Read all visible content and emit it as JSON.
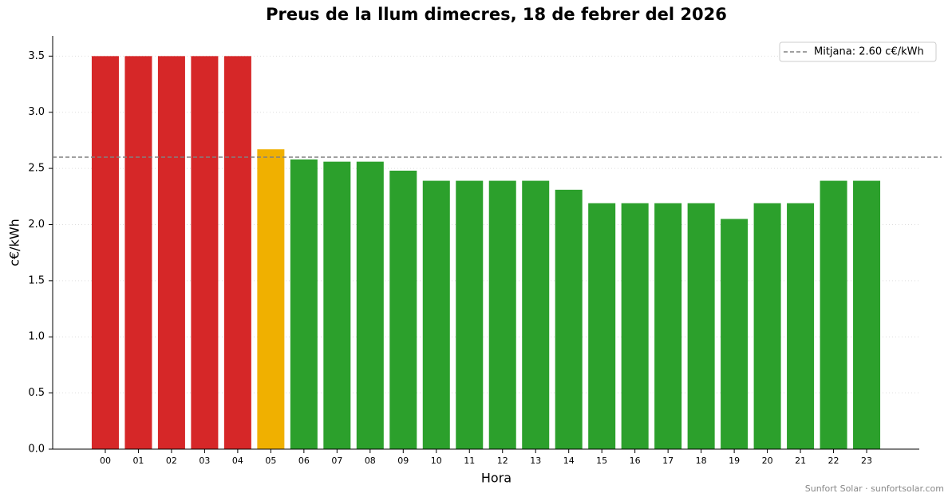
{
  "chart_data": {
    "type": "bar",
    "title": "Preus de la llum dimecres, 18 de febrer del 2026",
    "x_label": "Hora",
    "y_label": "c€/kWh",
    "categories": [
      "00",
      "01",
      "02",
      "03",
      "04",
      "05",
      "06",
      "07",
      "08",
      "09",
      "10",
      "11",
      "12",
      "13",
      "14",
      "15",
      "16",
      "17",
      "18",
      "19",
      "20",
      "21",
      "22",
      "23"
    ],
    "values": [
      3.5,
      3.5,
      3.5,
      3.5,
      3.5,
      2.67,
      2.58,
      2.56,
      2.56,
      2.48,
      2.39,
      2.39,
      2.39,
      2.39,
      2.31,
      2.19,
      2.19,
      2.19,
      2.19,
      2.05,
      2.19,
      2.19,
      2.39,
      2.39
    ],
    "colors": [
      "#d62728",
      "#d62728",
      "#d62728",
      "#d62728",
      "#d62728",
      "#f0b000",
      "#2ca02c",
      "#2ca02c",
      "#2ca02c",
      "#2ca02c",
      "#2ca02c",
      "#2ca02c",
      "#2ca02c",
      "#2ca02c",
      "#2ca02c",
      "#2ca02c",
      "#2ca02c",
      "#2ca02c",
      "#2ca02c",
      "#2ca02c",
      "#2ca02c",
      "#2ca02c",
      "#2ca02c",
      "#2ca02c"
    ],
    "mean": {
      "value": 2.6,
      "label": "Mitjana: 2.60 c€/kWh",
      "color": "#808080"
    },
    "ylim": [
      0,
      3.68
    ],
    "yticks": [
      {
        "value": 0,
        "label": "0.0"
      },
      0.5,
      {
        "value": 1,
        "label": "1.0"
      },
      1.5,
      {
        "value": 2,
        "label": "2.0"
      },
      2.5,
      {
        "value": 3,
        "label": "3.0"
      },
      3.5
    ],
    "grid": true,
    "legend_position": "upper-right",
    "footer": "Sunfort Solar · sunfortsolar.com"
  }
}
